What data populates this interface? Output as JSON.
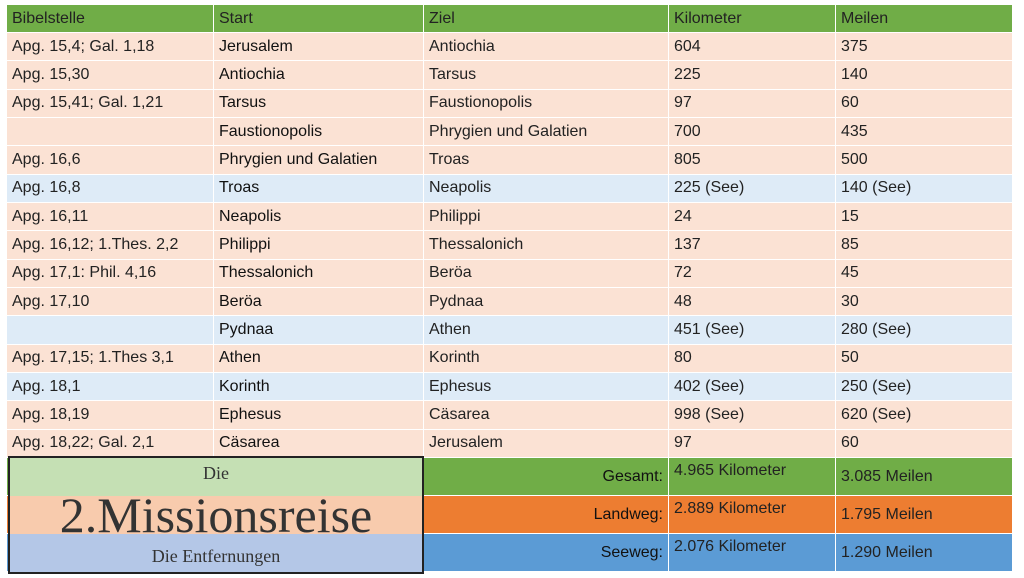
{
  "table": {
    "header": [
      "Bibelstelle",
      "Start",
      "Ziel",
      "Kilometer",
      "Meilen"
    ],
    "rows": [
      [
        "Apg. 15,4; Gal. 1,18",
        "Jerusalem",
        "Antiochia",
        "604",
        "375"
      ],
      [
        "Apg. 15,30",
        "Antiochia",
        "Tarsus",
        "225",
        "140"
      ],
      [
        "Apg. 15,41; Gal. 1,21",
        "Tarsus",
        "Faustionopolis",
        "97",
        "60"
      ],
      [
        null,
        "Faustionopolis",
        "Phrygien und Galatien",
        "700",
        "435"
      ],
      [
        "Apg. 16,6",
        "Phrygien und Galatien",
        "Troas",
        "805",
        "500"
      ],
      [
        "Apg. 16,8",
        "Troas",
        "Neapolis",
        "225 (See)",
        "140 (See)"
      ],
      [
        "Apg. 16,11",
        "Neapolis",
        "Philippi",
        "24",
        "15"
      ],
      [
        "Apg. 16,12; 1.Thes. 2,2",
        "Philippi",
        "Thessalonich",
        "137",
        "85"
      ],
      [
        "Apg. 17,1: Phil. 4,16",
        "Thessalonich",
        "Beröa",
        "72",
        "45"
      ],
      [
        "Apg. 17,10",
        "Beröa",
        "Pydnaa",
        "48",
        "30"
      ],
      [
        null,
        "Pydnaa",
        "Athen",
        "451 (See)",
        "280 (See)"
      ],
      [
        "Apg. 17,15; 1.Thes 3,1",
        "Athen",
        "Korinth",
        "80",
        "50"
      ],
      [
        "Apg. 18,1",
        "Korinth",
        "Ephesus",
        "402 (See)",
        "250 (See)"
      ],
      [
        "Apg. 18,19",
        "Ephesus",
        "Cäsarea",
        "998 (See)",
        "620 (See)"
      ],
      [
        "Apg. 18,22; Gal. 2,1",
        "Cäsarea",
        "Jerusalem",
        "97",
        "60"
      ]
    ],
    "summary": [
      [
        "Gesamt:",
        "4.965 Kilometer",
        "3.085 Meilen"
      ],
      [
        "Landweg:",
        "2.889 Kilometer",
        "1.795 Meilen"
      ],
      [
        "Seeweg:",
        "2.076 Kilometer",
        "1.290 Meilen"
      ]
    ]
  },
  "title": {
    "pre": "Die",
    "main": "2.Missionsreise",
    "sub": "Die Entfernungen"
  }
}
